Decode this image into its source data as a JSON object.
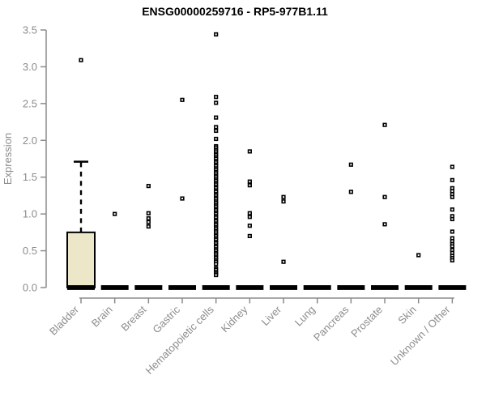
{
  "chart_data": {
    "type": "boxplot",
    "title": "ENSG00000259716 - RP5-977B1.11",
    "ylabel": "Expression",
    "xlabel": "",
    "ylim": [
      0,
      3.5
    ],
    "yticks": [
      "0.0",
      "0.5",
      "1.0",
      "1.5",
      "2.0",
      "2.5",
      "3.0",
      "3.5"
    ],
    "grid": false,
    "legend": "none",
    "categories": [
      "Bladder",
      "Brain",
      "Breast",
      "Gastric",
      "Hematopoietic cells",
      "Kidney",
      "Liver",
      "Lung",
      "Pancreas",
      "Prostate",
      "Skin",
      "Unknown / Other"
    ],
    "boxplots": [
      {
        "category": "Bladder",
        "median": 0,
        "q1": 0,
        "q3": 0.75,
        "whisker_low": 0,
        "whisker_high": 1.71,
        "outliers": [
          3.09
        ]
      },
      {
        "category": "Brain",
        "median": 0,
        "q1": 0,
        "q3": 0,
        "whisker_low": 0,
        "whisker_high": 0,
        "outliers": [
          1.0
        ]
      },
      {
        "category": "Breast",
        "median": 0,
        "q1": 0,
        "q3": 0,
        "whisker_low": 0,
        "whisker_high": 0,
        "outliers": [
          1.38,
          1.01,
          0.94,
          0.89,
          0.83
        ]
      },
      {
        "category": "Gastric",
        "median": 0,
        "q1": 0,
        "q3": 0,
        "whisker_low": 0,
        "whisker_high": 0,
        "outliers": [
          2.55,
          1.21
        ]
      },
      {
        "category": "Hematopoietic cells",
        "median": 0,
        "q1": 0,
        "q3": 0,
        "whisker_low": 0,
        "whisker_high": 0,
        "outliers": [
          3.44,
          2.59,
          2.51,
          2.31,
          2.18,
          2.13,
          2.02,
          1.92,
          1.9,
          1.87,
          1.85,
          1.82,
          1.8,
          1.77,
          1.75,
          1.72,
          1.7,
          1.67,
          1.65,
          1.62,
          1.6,
          1.57,
          1.55,
          1.52,
          1.5,
          1.47,
          1.45,
          1.42,
          1.4,
          1.37,
          1.35,
          1.32,
          1.3,
          1.27,
          1.25,
          1.22,
          1.2,
          1.17,
          1.15,
          1.12,
          1.1,
          1.07,
          1.05,
          1.02,
          1.0,
          0.97,
          0.95,
          0.92,
          0.9,
          0.87,
          0.85,
          0.82,
          0.8,
          0.77,
          0.75,
          0.72,
          0.7,
          0.67,
          0.65,
          0.62,
          0.6,
          0.57,
          0.55,
          0.52,
          0.5,
          0.47,
          0.45,
          0.42,
          0.4,
          0.37,
          0.35,
          0.32,
          0.26,
          0.24,
          0.21,
          0.19,
          0.17
        ]
      },
      {
        "category": "Kidney",
        "median": 0,
        "q1": 0,
        "q3": 0,
        "whisker_low": 0,
        "whisker_high": 0,
        "outliers": [
          1.85,
          1.44,
          1.39,
          1.01,
          0.96,
          0.84,
          0.7
        ]
      },
      {
        "category": "Liver",
        "median": 0,
        "q1": 0,
        "q3": 0,
        "whisker_low": 0,
        "whisker_high": 0,
        "outliers": [
          1.23,
          1.17,
          0.35
        ]
      },
      {
        "category": "Lung",
        "median": 0,
        "q1": 0,
        "q3": 0,
        "whisker_low": 0,
        "whisker_high": 0,
        "outliers": []
      },
      {
        "category": "Pancreas",
        "median": 0,
        "q1": 0,
        "q3": 0,
        "whisker_low": 0,
        "whisker_high": 0,
        "outliers": [
          1.67,
          1.3
        ]
      },
      {
        "category": "Prostate",
        "median": 0,
        "q1": 0,
        "q3": 0,
        "whisker_low": 0,
        "whisker_high": 0,
        "outliers": [
          2.21,
          1.23,
          0.86
        ]
      },
      {
        "category": "Skin",
        "median": 0,
        "q1": 0,
        "q3": 0,
        "whisker_low": 0,
        "whisker_high": 0,
        "outliers": [
          0.44
        ]
      },
      {
        "category": "Unknown / Other",
        "median": 0,
        "q1": 0,
        "q3": 0,
        "whisker_low": 0,
        "whisker_high": 0,
        "outliers": [
          1.64,
          1.46,
          1.35,
          1.31,
          1.27,
          1.23,
          1.06,
          0.97,
          0.93,
          0.76,
          0.67,
          0.63,
          0.59,
          0.56,
          0.51,
          0.47,
          0.43,
          0.4,
          0.37
        ]
      }
    ],
    "colors": {
      "box_fill": "#ECE7C9",
      "box_border": "#000000",
      "median_bar": "#000000",
      "point": "#000000",
      "point_fill": "#ffffff",
      "axis": "#8C8C8C",
      "tick_label": "#8C8C8C",
      "title": "#000000",
      "background": "#ffffff"
    }
  }
}
